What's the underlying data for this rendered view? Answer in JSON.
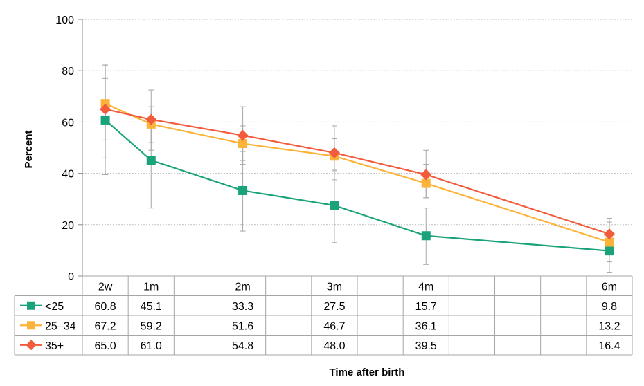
{
  "chart_data": {
    "type": "line",
    "title": "",
    "ylabel": "Percent",
    "xlabel": "Time after birth",
    "ylim": [
      0,
      100
    ],
    "yticks": [
      0,
      20,
      40,
      60,
      80,
      100
    ],
    "grid": true,
    "legend": "data-table-left",
    "timeline_months": [
      0.5,
      1,
      1.5,
      2,
      2.5,
      3,
      3.5,
      4,
      4.5,
      5,
      5.5,
      6
    ],
    "categories": [
      "2w",
      "1m",
      "",
      "2m",
      "",
      "3m",
      "",
      "4m",
      "",
      "",
      "",
      "6m"
    ],
    "series": [
      {
        "name": "<25",
        "color": "#1aa37a",
        "marker": "square",
        "x": [
          0.5,
          1,
          2,
          3,
          4,
          6
        ],
        "values": [
          60.8,
          45.1,
          33.3,
          27.5,
          15.7,
          9.8
        ],
        "labels": [
          "60.8",
          "45.1",
          "33.3",
          "27.5",
          "15.7",
          "9.8"
        ],
        "ci_low": [
          39.5,
          26.5,
          17.5,
          13.0,
          4.5,
          1.5
        ],
        "ci_high": [
          77.0,
          63.5,
          48.5,
          41.5,
          26.5,
          19.5
        ]
      },
      {
        "name": "25–34",
        "color": "#fbb33a",
        "marker": "square",
        "x": [
          0.5,
          1,
          2,
          3,
          4,
          6
        ],
        "values": [
          67.2,
          59.2,
          51.6,
          46.7,
          36.1,
          13.2
        ],
        "labels": [
          "67.2",
          "59.2",
          "51.6",
          "46.7",
          "36.1",
          "13.2"
        ],
        "ci_low": [
          53.0,
          52.0,
          45.0,
          41.0,
          30.5,
          5.5
        ],
        "ci_high": [
          82.0,
          66.0,
          58.5,
          53.5,
          43.5,
          21.0
        ]
      },
      {
        "name": "35+",
        "color": "#f25c3c",
        "marker": "diamond",
        "x": [
          0.5,
          1,
          2,
          3,
          4,
          6
        ],
        "values": [
          65.0,
          61.0,
          54.8,
          48.0,
          39.5,
          16.4
        ],
        "labels": [
          "65.0",
          "61.0",
          "54.8",
          "48.0",
          "39.5",
          "16.4"
        ],
        "ci_low": [
          46.0,
          49.0,
          43.5,
          37.5,
          30.5,
          10.5
        ],
        "ci_high": [
          82.5,
          72.5,
          66.0,
          58.5,
          49.0,
          22.5
        ]
      }
    ]
  }
}
